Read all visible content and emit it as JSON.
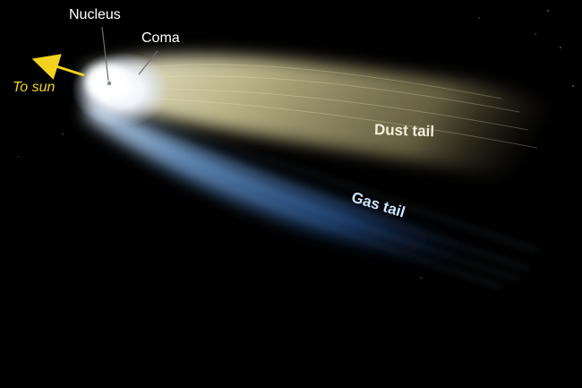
{
  "labels": {
    "nucleus": "Nucleus",
    "coma": "Coma",
    "to_sun": "To sun",
    "dust_tail": "Dust tail",
    "gas_tail": "Gas tail"
  },
  "colors": {
    "background": "#000000",
    "dust_tail": "#e8dfae",
    "gas_tail": "#3d7fd1",
    "sun_arrow": "#f2d21e",
    "coma": "#ffffff"
  }
}
